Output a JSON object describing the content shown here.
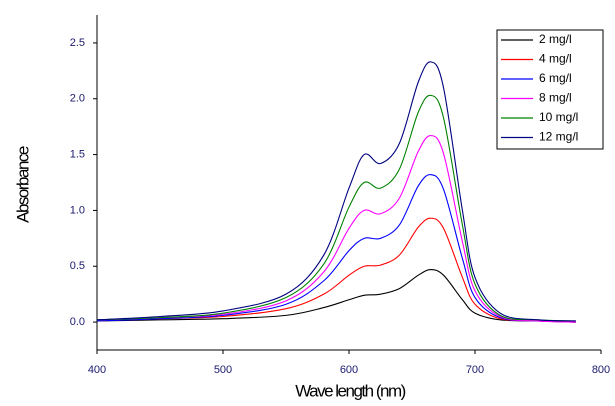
{
  "chart_data": {
    "type": "line",
    "xlabel": "Wave length (nm)",
    "ylabel": "Absorbance",
    "x": [
      400,
      450,
      500,
      550,
      580,
      600,
      612,
      625,
      640,
      655,
      665,
      675,
      690,
      700,
      720,
      750,
      780
    ],
    "series": [
      {
        "name": "2 mg/l",
        "color": "#000000",
        "values": [
          0.01,
          0.02,
          0.03,
          0.06,
          0.13,
          0.2,
          0.24,
          0.25,
          0.3,
          0.42,
          0.47,
          0.42,
          0.2,
          0.08,
          0.02,
          0.01,
          0.0
        ]
      },
      {
        "name": "4 mg/l",
        "color": "#ff0000",
        "values": [
          0.01,
          0.03,
          0.05,
          0.12,
          0.25,
          0.42,
          0.5,
          0.51,
          0.6,
          0.85,
          0.93,
          0.84,
          0.4,
          0.16,
          0.03,
          0.01,
          0.0
        ]
      },
      {
        "name": "6 mg/l",
        "color": "#0000ff",
        "values": [
          0.01,
          0.03,
          0.06,
          0.16,
          0.37,
          0.64,
          0.75,
          0.75,
          0.87,
          1.22,
          1.32,
          1.19,
          0.57,
          0.22,
          0.04,
          0.01,
          0.0
        ]
      },
      {
        "name": " 8 mg/l",
        "color": "#ff00ff",
        "values": [
          0.02,
          0.04,
          0.07,
          0.19,
          0.45,
          0.84,
          1.0,
          0.97,
          1.11,
          1.53,
          1.67,
          1.51,
          0.72,
          0.28,
          0.05,
          0.01,
          0.0
        ]
      },
      {
        "name": "10 mg/l",
        "color": "#008000",
        "values": [
          0.02,
          0.04,
          0.08,
          0.22,
          0.52,
          1.03,
          1.25,
          1.2,
          1.37,
          1.88,
          2.03,
          1.83,
          0.87,
          0.34,
          0.06,
          0.02,
          0.01
        ]
      },
      {
        "name": "12 mg/l",
        "color": "#000080",
        "values": [
          0.02,
          0.05,
          0.1,
          0.25,
          0.6,
          1.2,
          1.5,
          1.42,
          1.6,
          2.15,
          2.33,
          2.1,
          1.0,
          0.4,
          0.08,
          0.02,
          0.01
        ]
      }
    ],
    "xlim": [
      400,
      800
    ],
    "xticks": [
      400,
      500,
      600,
      700,
      800
    ],
    "ylim": [
      -0.25,
      2.75
    ],
    "yticks": [
      {
        "value": 0,
        "label": "0.0"
      },
      0.5,
      {
        "value": 1,
        "label": "1.0"
      },
      1.5,
      {
        "value": 2,
        "label": "2.0"
      },
      2.5
    ],
    "legend": "upper right",
    "grid": false
  }
}
